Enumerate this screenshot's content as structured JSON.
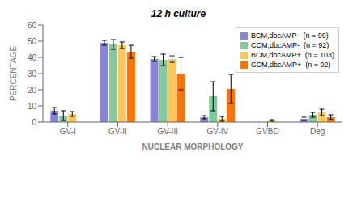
{
  "chart_data": {
    "type": "bar",
    "title": "12 h culture",
    "categories": [
      "GV-I",
      "GV-II",
      "GV-III",
      "GV-IV",
      "GVBD",
      "Deg"
    ],
    "series": [
      {
        "name": "BCM,dbcAMP-  (n = 99)",
        "color": "#8884d8",
        "values": [
          7,
          49,
          39,
          3,
          0,
          2
        ],
        "errors": [
          2,
          1.5,
          1.5,
          1,
          0,
          1
        ]
      },
      {
        "name": "CCM,dbcAMP-  (n = 92)",
        "color": "#82ca9d",
        "values": [
          4,
          48,
          38.5,
          16,
          0,
          4.5
        ],
        "errors": [
          3,
          3,
          3.5,
          9,
          0,
          1.5
        ]
      },
      {
        "name": "BCM,dbcAMP+  (n = 103)",
        "color": "#ffc658",
        "values": [
          5,
          47.5,
          39,
          2,
          1,
          6
        ],
        "errors": [
          1.5,
          2,
          2,
          1.5,
          0.5,
          2
        ]
      },
      {
        "name": "CCM,dbcAMP+  (n = 92)",
        "color": "#ff7300",
        "values": [
          0,
          43.5,
          30,
          20.5,
          0,
          3
        ],
        "errors": [
          0,
          4,
          10,
          9,
          0,
          1.5
        ]
      }
    ],
    "xlabel": "NUCLEAR MORPHOLOGY",
    "ylabel": "PERCENTAGE",
    "ylim": [
      0,
      60
    ],
    "yticks": [
      0,
      10,
      20,
      30,
      40,
      50,
      60
    ],
    "grid": false,
    "legend": "upper right"
  }
}
